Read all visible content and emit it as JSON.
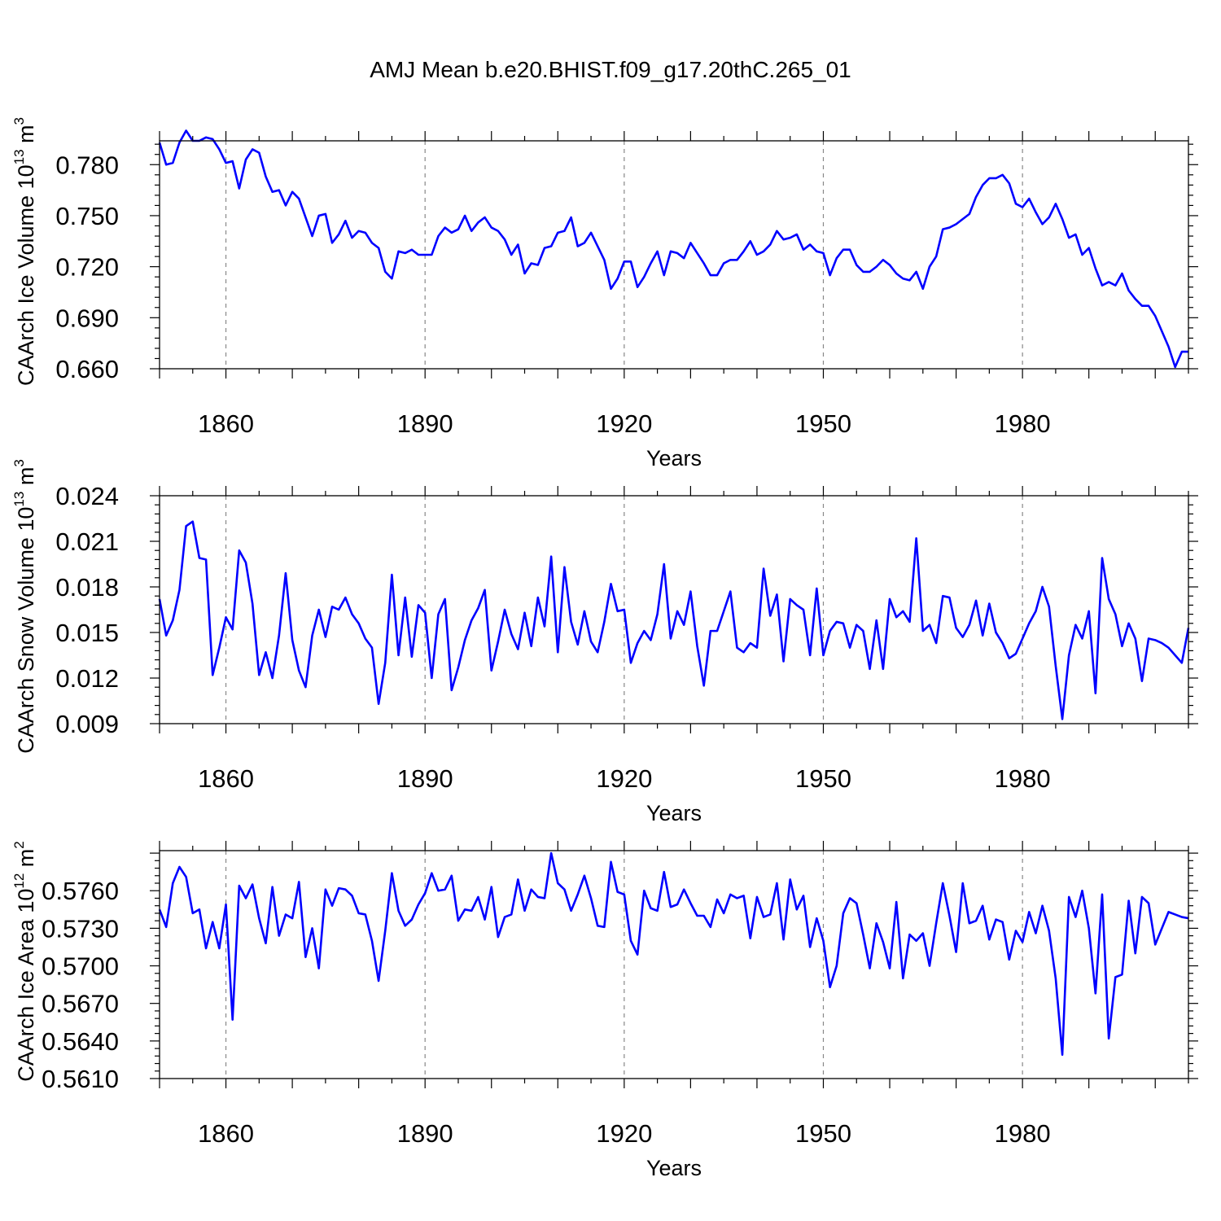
{
  "figure": {
    "title": "AMJ Mean b.e20.BHIST.f09_g17.20thC.265_01"
  },
  "colors": {
    "line": "#0000ff",
    "axis": "#000000",
    "grid": "#888888",
    "background": "#ffffff"
  },
  "chart_data": [
    {
      "type": "line",
      "ylabel": "CAArch Ice Volume",
      "yunit": {
        "base": "10",
        "exp": "13",
        "unit": "m",
        "unit_exp": "3"
      },
      "xlabel": "Years",
      "xlim": [
        1850,
        2005
      ],
      "ylim": [
        0.66,
        0.794
      ],
      "yticks": [
        "0.660",
        "0.690",
        "0.720",
        "0.750",
        "0.780"
      ],
      "ytick_values": [
        0.66,
        0.69,
        0.72,
        0.75,
        0.78
      ],
      "xticks": [
        "1860",
        "1890",
        "1920",
        "1950",
        "1980"
      ],
      "xtick_values": [
        1860,
        1890,
        1920,
        1950,
        1980
      ],
      "vertical_gridlines": true,
      "series": [
        {
          "x_start": 1850,
          "values": [
            0.793,
            0.78,
            0.781,
            0.793,
            0.8,
            0.794,
            0.794,
            0.796,
            0.795,
            0.789,
            0.781,
            0.782,
            0.766,
            0.783,
            0.789,
            0.787,
            0.773,
            0.764,
            0.765,
            0.756,
            0.764,
            0.76,
            0.749,
            0.738,
            0.75,
            0.751,
            0.734,
            0.739,
            0.747,
            0.737,
            0.741,
            0.74,
            0.734,
            0.731,
            0.717,
            0.713,
            0.729,
            0.728,
            0.73,
            0.727,
            0.727,
            0.727,
            0.738,
            0.743,
            0.74,
            0.742,
            0.75,
            0.741,
            0.746,
            0.749,
            0.743,
            0.741,
            0.736,
            0.727,
            0.733,
            0.716,
            0.722,
            0.721,
            0.731,
            0.732,
            0.74,
            0.741,
            0.749,
            0.732,
            0.734,
            0.74,
            0.732,
            0.724,
            0.707,
            0.713,
            0.723,
            0.723,
            0.708,
            0.714,
            0.722,
            0.729,
            0.715,
            0.729,
            0.728,
            0.725,
            0.734,
            0.728,
            0.722,
            0.715,
            0.715,
            0.722,
            0.724,
            0.724,
            0.729,
            0.735,
            0.727,
            0.729,
            0.733,
            0.741,
            0.736,
            0.737,
            0.739,
            0.73,
            0.733,
            0.729,
            0.728,
            0.715,
            0.725,
            0.73,
            0.73,
            0.721,
            0.717,
            0.717,
            0.72,
            0.724,
            0.721,
            0.716,
            0.713,
            0.712,
            0.717,
            0.707,
            0.72,
            0.726,
            0.742,
            0.743,
            0.745,
            0.748,
            0.751,
            0.761,
            0.768,
            0.772,
            0.772,
            0.774,
            0.769,
            0.757,
            0.755,
            0.76,
            0.752,
            0.745,
            0.749,
            0.757,
            0.748,
            0.737,
            0.739,
            0.727,
            0.731,
            0.719,
            0.709,
            0.711,
            0.709,
            0.716,
            0.706,
            0.701,
            0.697,
            0.697,
            0.691,
            0.682,
            0.673,
            0.661,
            0.67,
            0.67
          ]
        }
      ]
    },
    {
      "type": "line",
      "ylabel": "CAArch Snow Volume",
      "yunit": {
        "base": "10",
        "exp": "13",
        "unit": "m",
        "unit_exp": "3"
      },
      "xlabel": "Years",
      "xlim": [
        1850,
        2005
      ],
      "ylim": [
        0.009,
        0.024
      ],
      "yticks": [
        "0.009",
        "0.012",
        "0.015",
        "0.018",
        "0.021",
        "0.024"
      ],
      "ytick_values": [
        0.009,
        0.012,
        0.015,
        0.018,
        0.021,
        0.024
      ],
      "xticks": [
        "1860",
        "1890",
        "1920",
        "1950",
        "1980"
      ],
      "xtick_values": [
        1860,
        1890,
        1920,
        1950,
        1980
      ],
      "vertical_gridlines": true,
      "series": [
        {
          "x_start": 1850,
          "values": [
            0.0172,
            0.0148,
            0.0158,
            0.0178,
            0.022,
            0.0223,
            0.0199,
            0.0198,
            0.0122,
            0.014,
            0.016,
            0.0152,
            0.0204,
            0.0196,
            0.0169,
            0.0122,
            0.0137,
            0.012,
            0.0148,
            0.0189,
            0.0145,
            0.0125,
            0.0114,
            0.0148,
            0.0165,
            0.0147,
            0.0167,
            0.0165,
            0.0173,
            0.0162,
            0.0156,
            0.0146,
            0.014,
            0.0103,
            0.013,
            0.0188,
            0.0135,
            0.0173,
            0.0134,
            0.0168,
            0.0163,
            0.012,
            0.0162,
            0.0172,
            0.0112,
            0.0127,
            0.0145,
            0.0158,
            0.0166,
            0.0178,
            0.0125,
            0.0144,
            0.0165,
            0.0149,
            0.0139,
            0.0163,
            0.0141,
            0.0173,
            0.0154,
            0.02,
            0.0137,
            0.0193,
            0.0157,
            0.0142,
            0.0164,
            0.0144,
            0.0137,
            0.0157,
            0.0182,
            0.0164,
            0.0165,
            0.013,
            0.0143,
            0.0151,
            0.0145,
            0.0162,
            0.0195,
            0.0146,
            0.0164,
            0.0155,
            0.0177,
            0.0141,
            0.0115,
            0.0151,
            0.0151,
            0.0164,
            0.0177,
            0.014,
            0.0137,
            0.0143,
            0.014,
            0.0192,
            0.0161,
            0.0175,
            0.0131,
            0.0172,
            0.0168,
            0.0165,
            0.0135,
            0.0179,
            0.0135,
            0.0151,
            0.0157,
            0.0156,
            0.014,
            0.0155,
            0.0151,
            0.0126,
            0.0158,
            0.0126,
            0.0172,
            0.016,
            0.0164,
            0.0157,
            0.0212,
            0.0151,
            0.0155,
            0.0143,
            0.0174,
            0.0173,
            0.0153,
            0.0147,
            0.0155,
            0.0171,
            0.0148,
            0.0169,
            0.015,
            0.0143,
            0.0133,
            0.0136,
            0.0146,
            0.0156,
            0.0164,
            0.018,
            0.0167,
            0.0128,
            0.0093,
            0.0135,
            0.0155,
            0.0146,
            0.0164,
            0.011,
            0.0199,
            0.0172,
            0.0162,
            0.0141,
            0.0156,
            0.0146,
            0.0118,
            0.0146,
            0.0145,
            0.0143,
            0.014,
            0.0135,
            0.013,
            0.0153
          ]
        }
      ]
    },
    {
      "type": "line",
      "ylabel": "CAArch Ice Area",
      "yunit": {
        "base": "10",
        "exp": "12",
        "unit": "m",
        "unit_exp": "2"
      },
      "xlabel": "Years",
      "xlim": [
        1850,
        2005
      ],
      "ylim": [
        0.561,
        0.5792
      ],
      "yticks": [
        "0.5610",
        "0.5640",
        "0.5670",
        "0.5700",
        "0.5730",
        "0.5760"
      ],
      "ytick_values": [
        0.561,
        0.564,
        0.567,
        0.57,
        0.573,
        0.576
      ],
      "xticks": [
        "1860",
        "1890",
        "1920",
        "1950",
        "1980"
      ],
      "xtick_values": [
        1860,
        1890,
        1920,
        1950,
        1980
      ],
      "vertical_gridlines": true,
      "series": [
        {
          "x_start": 1850,
          "values": [
            0.5745,
            0.5731,
            0.5766,
            0.5779,
            0.5771,
            0.5742,
            0.5745,
            0.5714,
            0.5735,
            0.5714,
            0.5749,
            0.5657,
            0.5764,
            0.5754,
            0.5765,
            0.5738,
            0.5718,
            0.5763,
            0.5724,
            0.5741,
            0.5738,
            0.5767,
            0.5707,
            0.573,
            0.5698,
            0.5761,
            0.5748,
            0.5762,
            0.5761,
            0.5756,
            0.5742,
            0.5741,
            0.572,
            0.5688,
            0.5728,
            0.5774,
            0.5744,
            0.5732,
            0.5737,
            0.5749,
            0.5758,
            0.5774,
            0.576,
            0.5761,
            0.5772,
            0.5736,
            0.5745,
            0.5744,
            0.5755,
            0.5737,
            0.5763,
            0.5723,
            0.5739,
            0.5741,
            0.5769,
            0.5744,
            0.5761,
            0.5755,
            0.5754,
            0.579,
            0.5766,
            0.5761,
            0.5744,
            0.5757,
            0.5772,
            0.5754,
            0.5732,
            0.5731,
            0.5783,
            0.5759,
            0.5757,
            0.572,
            0.5709,
            0.576,
            0.5746,
            0.5744,
            0.5775,
            0.5747,
            0.5749,
            0.5761,
            0.575,
            0.574,
            0.574,
            0.5731,
            0.5753,
            0.5742,
            0.5757,
            0.5754,
            0.5756,
            0.5722,
            0.5755,
            0.5739,
            0.5741,
            0.5766,
            0.5721,
            0.5769,
            0.5745,
            0.5756,
            0.5715,
            0.5738,
            0.572,
            0.5683,
            0.57,
            0.5742,
            0.5754,
            0.575,
            0.5725,
            0.5698,
            0.5734,
            0.5719,
            0.5698,
            0.5751,
            0.569,
            0.5725,
            0.572,
            0.5726,
            0.57,
            0.5734,
            0.5766,
            0.574,
            0.5711,
            0.5766,
            0.5734,
            0.5736,
            0.5748,
            0.5721,
            0.5737,
            0.5735,
            0.5705,
            0.5728,
            0.5719,
            0.5743,
            0.5726,
            0.5748,
            0.5728,
            0.569,
            0.5629,
            0.5755,
            0.5739,
            0.576,
            0.573,
            0.5678,
            0.5757,
            0.5642,
            0.5691,
            0.5693,
            0.5752,
            0.571,
            0.5755,
            0.575,
            0.5717,
            0.573,
            0.5743,
            0.5741,
            0.5739,
            0.5738
          ]
        }
      ]
    }
  ]
}
